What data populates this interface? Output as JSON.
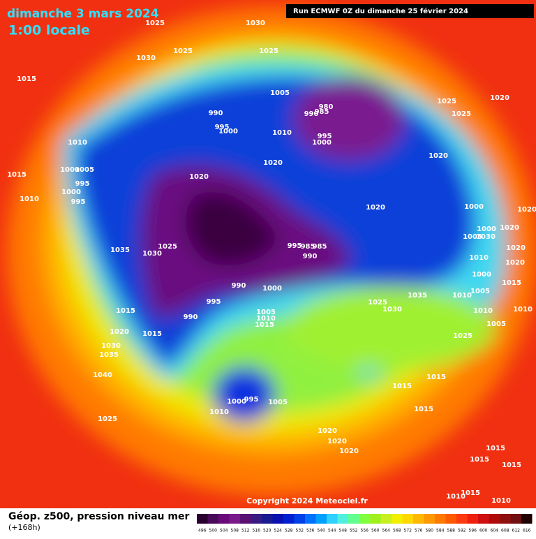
{
  "header": {
    "date": "dimanche 3 mars 2024",
    "time": "1:00 locale",
    "run": "Run ECMWF 0Z du dimanche 25 février 2024"
  },
  "footer": {
    "copyright": "Copyright 2024 Meteociel.fr",
    "field": "Géop. z500, pression niveau mer",
    "lead": "(+168h)"
  },
  "legend": {
    "values": [
      496,
      500,
      504,
      508,
      512,
      516,
      520,
      524,
      528,
      532,
      536,
      540,
      544,
      548,
      552,
      556,
      560,
      564,
      568,
      572,
      576,
      580,
      584,
      588,
      592,
      596,
      600,
      604,
      608,
      612,
      616
    ],
    "colors": [
      "#2a0030",
      "#4a0a5a",
      "#6a0a7a",
      "#7a1a8a",
      "#5a1070",
      "#3a1a80",
      "#1a1a90",
      "#0a10b0",
      "#0020d0",
      "#0040e8",
      "#0070ff",
      "#00a0ff",
      "#30d0ff",
      "#50f0e0",
      "#60ff90",
      "#80ff40",
      "#a0f020",
      "#c8f020",
      "#f0f000",
      "#ffd800",
      "#ffb800",
      "#ff9800",
      "#ff7800",
      "#ff5a00",
      "#ff3a10",
      "#f02010",
      "#d01010",
      "#b00a0a",
      "#901010",
      "#701010",
      "#200000"
    ]
  },
  "isobar_labels": [
    "1025",
    "1030",
    "1025",
    "1025",
    "1030",
    "1015",
    "1005",
    "990",
    "980",
    "985",
    "990",
    "995",
    "1000",
    "1010",
    "995",
    "1000",
    "1025",
    "1025",
    "1020",
    "1010",
    "1020",
    "1020",
    "1000",
    "1005",
    "1015",
    "995",
    "1020",
    "1000",
    "1010",
    "995",
    "1020",
    "1000",
    "1020",
    "1000",
    "1020",
    "1005",
    "1030",
    "1020",
    "1025",
    "1035",
    "1030",
    "995",
    "985",
    "985",
    "990",
    "1010",
    "1020",
    "990",
    "1000",
    "1000",
    "1015",
    "1005",
    "1035",
    "1025",
    "1030",
    "1010",
    "995",
    "1015",
    "1005",
    "1010",
    "1015",
    "990",
    "1010",
    "1010",
    "1005",
    "1020",
    "1015",
    "1025",
    "1030",
    "1035",
    "1040",
    "1015",
    "1015",
    "1000",
    "995",
    "1005",
    "1010",
    "1015",
    "1025",
    "1020",
    "1020",
    "1020",
    "1015",
    "1015",
    "1015",
    "1015",
    "1010",
    "1010"
  ]
}
